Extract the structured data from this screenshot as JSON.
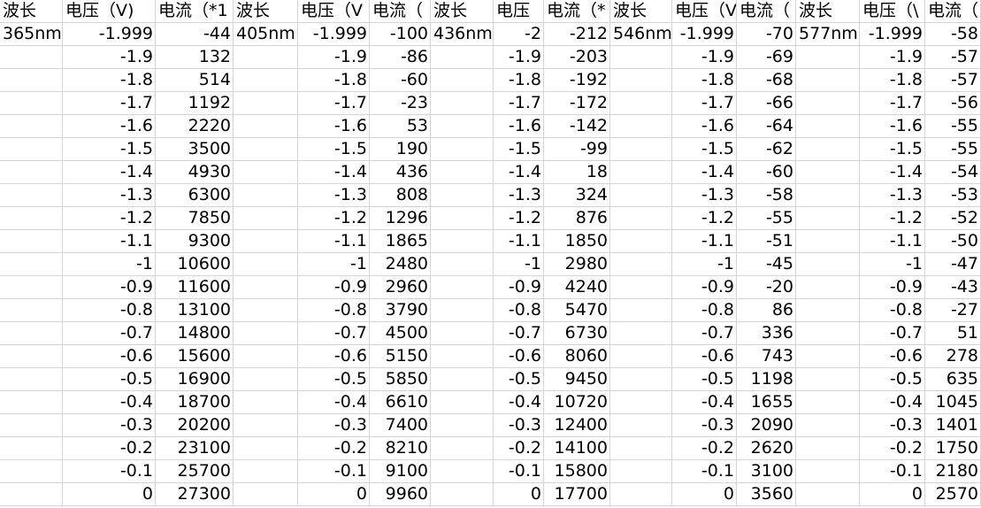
{
  "spreadsheet": {
    "header": [
      "波长",
      "电压（V)",
      "电流（*1",
      "波长",
      "电压（V",
      "电流（",
      "波长",
      "电压",
      "电流（*",
      "波长",
      "电压（V",
      "电流（",
      "波长",
      "电压（\\",
      "电流（"
    ],
    "rows": [
      [
        "365nm",
        "-1.999",
        "-44",
        "405nm",
        "-1.999",
        "-100",
        "436nm",
        "-2",
        "-212",
        "546nm",
        "-1.999",
        "-70",
        "577nm",
        "-1.999",
        "-58"
      ],
      [
        "",
        "-1.9",
        "132",
        "",
        "-1.9",
        "-86",
        "",
        "-1.9",
        "-203",
        "",
        "-1.9",
        "-69",
        "",
        "-1.9",
        "-57"
      ],
      [
        "",
        "-1.8",
        "514",
        "",
        "-1.8",
        "-60",
        "",
        "-1.8",
        "-192",
        "",
        "-1.8",
        "-68",
        "",
        "-1.8",
        "-57"
      ],
      [
        "",
        "-1.7",
        "1192",
        "",
        "-1.7",
        "-23",
        "",
        "-1.7",
        "-172",
        "",
        "-1.7",
        "-66",
        "",
        "-1.7",
        "-56"
      ],
      [
        "",
        "-1.6",
        "2220",
        "",
        "-1.6",
        "53",
        "",
        "-1.6",
        "-142",
        "",
        "-1.6",
        "-64",
        "",
        "-1.6",
        "-55"
      ],
      [
        "",
        "-1.5",
        "3500",
        "",
        "-1.5",
        "190",
        "",
        "-1.5",
        "-99",
        "",
        "-1.5",
        "-62",
        "",
        "-1.5",
        "-55"
      ],
      [
        "",
        "-1.4",
        "4930",
        "",
        "-1.4",
        "436",
        "",
        "-1.4",
        "18",
        "",
        "-1.4",
        "-60",
        "",
        "-1.4",
        "-54"
      ],
      [
        "",
        "-1.3",
        "6300",
        "",
        "-1.3",
        "808",
        "",
        "-1.3",
        "324",
        "",
        "-1.3",
        "-58",
        "",
        "-1.3",
        "-53"
      ],
      [
        "",
        "-1.2",
        "7850",
        "",
        "-1.2",
        "1296",
        "",
        "-1.2",
        "876",
        "",
        "-1.2",
        "-55",
        "",
        "-1.2",
        "-52"
      ],
      [
        "",
        "-1.1",
        "9300",
        "",
        "-1.1",
        "1865",
        "",
        "-1.1",
        "1850",
        "",
        "-1.1",
        "-51",
        "",
        "-1.1",
        "-50"
      ],
      [
        "",
        "-1",
        "10600",
        "",
        "-1",
        "2480",
        "",
        "-1",
        "2980",
        "",
        "-1",
        "-45",
        "",
        "-1",
        "-47"
      ],
      [
        "",
        "-0.9",
        "11600",
        "",
        "-0.9",
        "2960",
        "",
        "-0.9",
        "4240",
        "",
        "-0.9",
        "-20",
        "",
        "-0.9",
        "-43"
      ],
      [
        "",
        "-0.8",
        "13100",
        "",
        "-0.8",
        "3790",
        "",
        "-0.8",
        "5470",
        "",
        "-0.8",
        "86",
        "",
        "-0.8",
        "-27"
      ],
      [
        "",
        "-0.7",
        "14800",
        "",
        "-0.7",
        "4500",
        "",
        "-0.7",
        "6730",
        "",
        "-0.7",
        "336",
        "",
        "-0.7",
        "51"
      ],
      [
        "",
        "-0.6",
        "15600",
        "",
        "-0.6",
        "5150",
        "",
        "-0.6",
        "8060",
        "",
        "-0.6",
        "743",
        "",
        "-0.6",
        "278"
      ],
      [
        "",
        "-0.5",
        "16900",
        "",
        "-0.5",
        "5850",
        "",
        "-0.5",
        "9450",
        "",
        "-0.5",
        "1198",
        "",
        "-0.5",
        "635"
      ],
      [
        "",
        "-0.4",
        "18700",
        "",
        "-0.4",
        "6610",
        "",
        "-0.4",
        "10720",
        "",
        "-0.4",
        "1655",
        "",
        "-0.4",
        "1045"
      ],
      [
        "",
        "-0.3",
        "20200",
        "",
        "-0.3",
        "7400",
        "",
        "-0.3",
        "12400",
        "",
        "-0.3",
        "2090",
        "",
        "-0.3",
        "1401"
      ],
      [
        "",
        "-0.2",
        "23100",
        "",
        "-0.2",
        "8210",
        "",
        "-0.2",
        "14100",
        "",
        "-0.2",
        "2620",
        "",
        "-0.2",
        "1750"
      ],
      [
        "",
        "-0.1",
        "25700",
        "",
        "-0.1",
        "9100",
        "",
        "-0.1",
        "15800",
        "",
        "-0.1",
        "3100",
        "",
        "-0.1",
        "2180"
      ],
      [
        "",
        "0",
        "27300",
        "",
        "0",
        "9960",
        "",
        "0",
        "17700",
        "",
        "0",
        "3560",
        "",
        "0",
        "2570"
      ]
    ]
  }
}
